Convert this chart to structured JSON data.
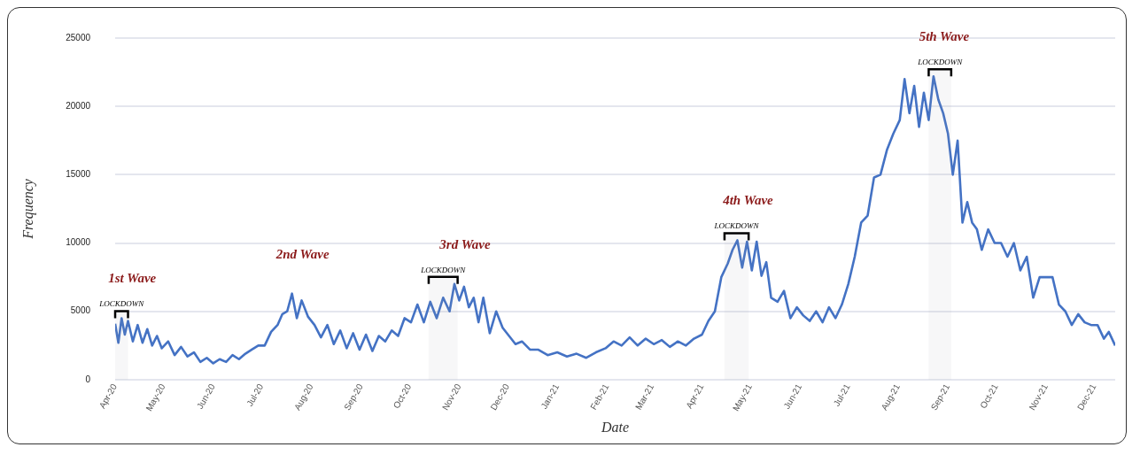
{
  "chart_data": {
    "type": "line",
    "xlabel": "Date",
    "ylabel": "Frequency",
    "x": [
      "2020-04-01",
      "2020-04-03",
      "2020-04-05",
      "2020-04-07",
      "2020-04-09",
      "2020-04-12",
      "2020-04-15",
      "2020-04-18",
      "2020-04-21",
      "2020-04-24",
      "2020-04-27",
      "2020-04-30",
      "2020-05-04",
      "2020-05-08",
      "2020-05-12",
      "2020-05-16",
      "2020-05-20",
      "2020-05-24",
      "2020-05-28",
      "2020-06-01",
      "2020-06-05",
      "2020-06-09",
      "2020-06-13",
      "2020-06-17",
      "2020-06-21",
      "2020-06-25",
      "2020-06-29",
      "2020-07-03",
      "2020-07-07",
      "2020-07-11",
      "2020-07-14",
      "2020-07-17",
      "2020-07-20",
      "2020-07-23",
      "2020-07-26",
      "2020-07-30",
      "2020-08-03",
      "2020-08-07",
      "2020-08-11",
      "2020-08-15",
      "2020-08-19",
      "2020-08-23",
      "2020-08-27",
      "2020-08-31",
      "2020-09-04",
      "2020-09-08",
      "2020-09-12",
      "2020-09-16",
      "2020-09-20",
      "2020-09-24",
      "2020-09-28",
      "2020-10-02",
      "2020-10-06",
      "2020-10-10",
      "2020-10-14",
      "2020-10-18",
      "2020-10-22",
      "2020-10-26",
      "2020-10-29",
      "2020-11-01",
      "2020-11-04",
      "2020-11-07",
      "2020-11-10",
      "2020-11-13",
      "2020-11-16",
      "2020-11-20",
      "2020-11-24",
      "2020-11-28",
      "2020-12-02",
      "2020-12-06",
      "2020-12-10",
      "2020-12-15",
      "2020-12-20",
      "2020-12-26",
      "2021-01-01",
      "2021-01-07",
      "2021-01-13",
      "2021-01-19",
      "2021-01-25",
      "2021-01-31",
      "2021-02-05",
      "2021-02-10",
      "2021-02-15",
      "2021-02-20",
      "2021-02-25",
      "2021-03-02",
      "2021-03-07",
      "2021-03-12",
      "2021-03-17",
      "2021-03-22",
      "2021-03-27",
      "2021-04-01",
      "2021-04-05",
      "2021-04-09",
      "2021-04-13",
      "2021-04-17",
      "2021-04-20",
      "2021-04-23",
      "2021-04-26",
      "2021-04-29",
      "2021-05-02",
      "2021-05-05",
      "2021-05-08",
      "2021-05-11",
      "2021-05-14",
      "2021-05-18",
      "2021-05-22",
      "2021-05-26",
      "2021-05-30",
      "2021-06-03",
      "2021-06-07",
      "2021-06-11",
      "2021-06-15",
      "2021-06-19",
      "2021-06-23",
      "2021-06-27",
      "2021-07-01",
      "2021-07-05",
      "2021-07-09",
      "2021-07-13",
      "2021-07-17",
      "2021-07-21",
      "2021-07-25",
      "2021-07-29",
      "2021-08-02",
      "2021-08-05",
      "2021-08-08",
      "2021-08-11",
      "2021-08-14",
      "2021-08-17",
      "2021-08-20",
      "2021-08-23",
      "2021-08-26",
      "2021-08-29",
      "2021-09-01",
      "2021-09-04",
      "2021-09-07",
      "2021-09-10",
      "2021-09-13",
      "2021-09-16",
      "2021-09-19",
      "2021-09-22",
      "2021-09-26",
      "2021-09-30",
      "2021-10-04",
      "2021-10-08",
      "2021-10-12",
      "2021-10-16",
      "2021-10-20",
      "2021-10-24",
      "2021-10-28",
      "2021-11-01",
      "2021-11-05",
      "2021-11-09",
      "2021-11-13",
      "2021-11-17",
      "2021-11-21",
      "2021-11-25",
      "2021-11-29",
      "2021-12-03",
      "2021-12-07",
      "2021-12-10",
      "2021-12-14"
    ],
    "series": [
      {
        "color": "#4472c4",
        "values": [
          4100,
          2700,
          4500,
          3300,
          4300,
          2800,
          4000,
          2700,
          3700,
          2500,
          3200,
          2300,
          2800,
          1800,
          2400,
          1700,
          2000,
          1300,
          1600,
          1200,
          1500,
          1300,
          1800,
          1500,
          1900,
          2200,
          2500,
          2500,
          3500,
          4000,
          4800,
          5000,
          6300,
          4500,
          5800,
          4600,
          4000,
          3100,
          4000,
          2600,
          3600,
          2300,
          3400,
          2200,
          3300,
          2100,
          3200,
          2800,
          3600,
          3200,
          4500,
          4200,
          5500,
          4200,
          5700,
          4500,
          6000,
          5000,
          7000,
          5800,
          6800,
          5300,
          6000,
          4200,
          6000,
          3400,
          5000,
          3800,
          3200,
          2600,
          2800,
          2200,
          2200,
          1800,
          2000,
          1700,
          1900,
          1600,
          2000,
          2300,
          2800,
          2500,
          3100,
          2500,
          3000,
          2600,
          2900,
          2400,
          2800,
          2500,
          3000,
          3300,
          4300,
          5000,
          7500,
          8500,
          9500,
          10200,
          8200,
          10100,
          8000,
          10100,
          7600,
          8600,
          6000,
          5700,
          6500,
          4500,
          5300,
          4700,
          4300,
          5000,
          4200,
          5300,
          4500,
          5500,
          7000,
          9000,
          11500,
          12000,
          14800,
          15000,
          16800,
          18000,
          19000,
          22000,
          19500,
          21500,
          18500,
          21000,
          19000,
          22200,
          20500,
          19500,
          18000,
          15000,
          17500,
          11500,
          13000,
          11500,
          11000,
          9500,
          11000,
          10000,
          10000,
          9000,
          10000,
          8000,
          9000,
          6000,
          7500,
          7500,
          7500,
          5500,
          5000,
          4000,
          4800,
          4200,
          4000,
          4000,
          3000,
          3500,
          2500
        ]
      }
    ],
    "xlim": [
      "2020-04-01",
      "2021-12-14"
    ],
    "xticks": [
      {
        "value": "2020-04-01",
        "label": "Apr-20"
      },
      {
        "value": "2020-05-01",
        "label": "May-20"
      },
      {
        "value": "2020-06-01",
        "label": "Jun-20"
      },
      {
        "value": "2020-07-01",
        "label": "Jul-20"
      },
      {
        "value": "2020-08-01",
        "label": "Aug-20"
      },
      {
        "value": "2020-09-01",
        "label": "Sep-20"
      },
      {
        "value": "2020-10-01",
        "label": "Oct-20"
      },
      {
        "value": "2020-11-01",
        "label": "Nov-20"
      },
      {
        "value": "2020-12-01",
        "label": "Dec-20"
      },
      {
        "value": "2021-01-01",
        "label": "Jan-21"
      },
      {
        "value": "2021-02-01",
        "label": "Feb-21"
      },
      {
        "value": "2021-03-01",
        "label": "Mar-21"
      },
      {
        "value": "2021-04-01",
        "label": "Apr-21"
      },
      {
        "value": "2021-05-01",
        "label": "May-21"
      },
      {
        "value": "2021-06-01",
        "label": "Jun-21"
      },
      {
        "value": "2021-07-01",
        "label": "Jul-21"
      },
      {
        "value": "2021-08-01",
        "label": "Aug-21"
      },
      {
        "value": "2021-09-01",
        "label": "Sep-21"
      },
      {
        "value": "2021-10-01",
        "label": "Oct-21"
      },
      {
        "value": "2021-11-01",
        "label": "Nov-21"
      },
      {
        "value": "2021-12-01",
        "label": "Dec-21"
      }
    ],
    "ylim": [
      0,
      25000
    ],
    "yticks": [
      0,
      5000,
      10000,
      15000,
      20000,
      25000
    ],
    "grid": "y",
    "legend": false,
    "marker": "none",
    "line_style": "solid",
    "annotations": [
      {
        "text": "1st Wave",
        "x": "2020-04-05",
        "y": 4500
      },
      {
        "text": "2nd Wave",
        "x": "2020-07-20",
        "y": 6300
      },
      {
        "text": "3rd Wave",
        "x": "2020-10-29",
        "y": 7000
      },
      {
        "text": "4th Wave",
        "x": "2021-04-23",
        "y": 10200
      },
      {
        "text": "5th Wave",
        "x": "2021-08-23",
        "y": 22200
      }
    ],
    "bands": [
      {
        "axis": "x",
        "from": "2020-04-01",
        "to": "2020-04-09",
        "label": "LOCKDOWN"
      },
      {
        "axis": "x",
        "from": "2020-10-13",
        "to": "2020-10-31",
        "label": "LOCKDOWN"
      },
      {
        "axis": "x",
        "from": "2021-04-15",
        "to": "2021-04-30",
        "label": "LOCKDOWN"
      },
      {
        "axis": "x",
        "from": "2021-08-20",
        "to": "2021-09-03",
        "label": "LOCKDOWN"
      }
    ]
  }
}
